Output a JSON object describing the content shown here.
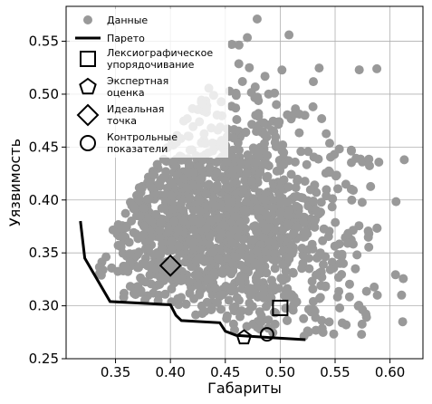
{
  "chart_data": {
    "type": "scatter",
    "xlabel": "Габариты",
    "ylabel": "Уязвимость",
    "xlim": [
      0.305,
      0.63
    ],
    "ylim": [
      0.25,
      0.583
    ],
    "xticks": [
      0.35,
      0.4,
      0.45,
      0.5,
      0.55,
      0.6
    ],
    "xtick_labels": [
      "0.35",
      "0.40",
      "0.45",
      "0.50",
      "0.55",
      "0.60"
    ],
    "yticks": [
      0.25,
      0.3,
      0.35,
      0.4,
      0.45,
      0.5,
      0.55
    ],
    "ytick_labels": [
      "0.25",
      "0.30",
      "0.35",
      "0.40",
      "0.45",
      "0.50",
      "0.55"
    ],
    "grid": true,
    "legend_placement": "top-left",
    "legend": [
      {
        "label": "Данные",
        "marker": "circle-filled"
      },
      {
        "label": "Парето",
        "marker": "line"
      },
      {
        "label": "Лексиографическое упорядочивание",
        "marker": "square"
      },
      {
        "label": "Экспертная оценка",
        "marker": "pentagon"
      },
      {
        "label": "Идеальная точка",
        "marker": "diamond"
      },
      {
        "label": "Контрольные показатели",
        "marker": "circle-open"
      }
    ],
    "colors": {
      "data": "#999999",
      "pareto": "#000000",
      "grid": "#b0b0b0"
    },
    "pareto": {
      "name": "Парето",
      "x": [
        0.318,
        0.322,
        0.345,
        0.4,
        0.405,
        0.41,
        0.445,
        0.45,
        0.46,
        0.49,
        0.523
      ],
      "y": [
        0.38,
        0.345,
        0.304,
        0.301,
        0.291,
        0.286,
        0.284,
        0.276,
        0.272,
        0.27,
        0.268
      ]
    },
    "markers": {
      "lexicographic": {
        "x": 0.5,
        "y": 0.298
      },
      "expert": {
        "x": 0.467,
        "y": 0.27
      },
      "ideal": {
        "x": 0.4,
        "y": 0.338
      },
      "control": {
        "x": 0.488,
        "y": 0.273
      }
    },
    "scatter_seed": 20240521,
    "scatter_count": 1400
  }
}
